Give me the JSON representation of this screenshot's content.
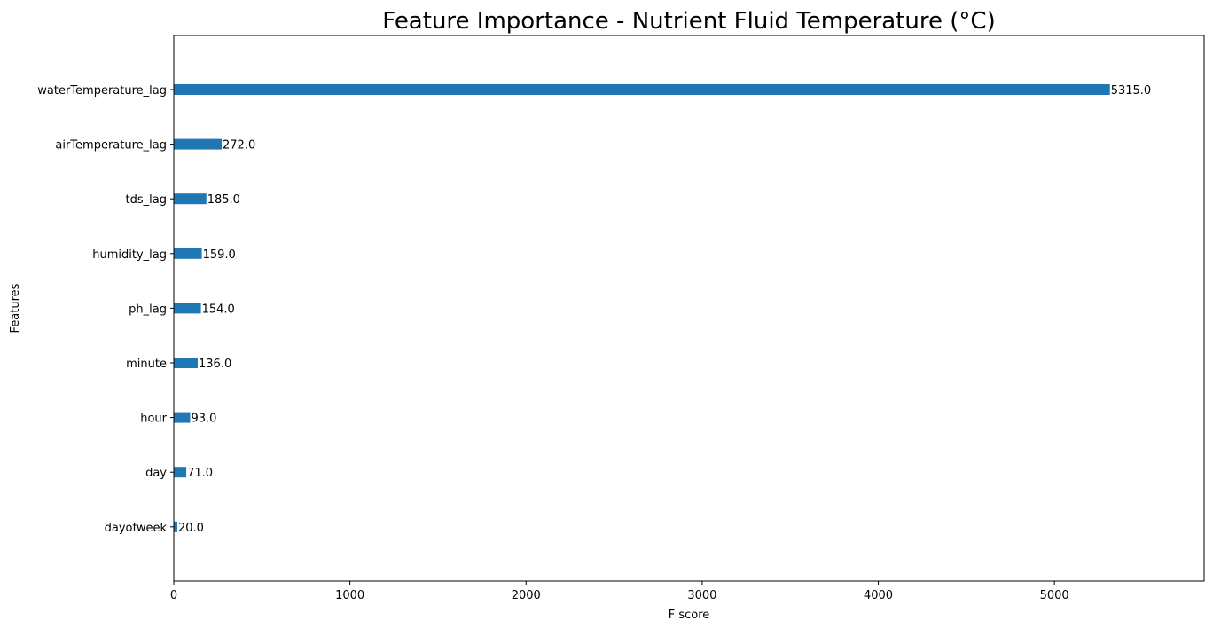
{
  "chart_data": {
    "type": "bar",
    "orientation": "horizontal",
    "title": "Feature Importance - Nutrient Fluid Temperature (°C)",
    "xlabel": "F score",
    "ylabel": "Features",
    "categories": [
      "waterTemperature_lag",
      "airTemperature_lag",
      "tds_lag",
      "humidity_lag",
      "ph_lag",
      "minute",
      "hour",
      "day",
      "dayofweek"
    ],
    "values": [
      5315.0,
      272.0,
      185.0,
      159.0,
      154.0,
      136.0,
      93.0,
      71.0,
      20.0
    ],
    "data_labels": [
      "5315.0",
      "272.0",
      "185.0",
      "159.0",
      "154.0",
      "136.0",
      "93.0",
      "71.0",
      "20.0"
    ],
    "xlim": [
      0,
      5850
    ],
    "xticks": [
      0,
      1000,
      2000,
      3000,
      4000,
      5000
    ],
    "xtick_labels": [
      "0",
      "1000",
      "2000",
      "3000",
      "4000",
      "5000"
    ],
    "bar_color": "#1f77b4",
    "grid": false,
    "legend": "none"
  }
}
